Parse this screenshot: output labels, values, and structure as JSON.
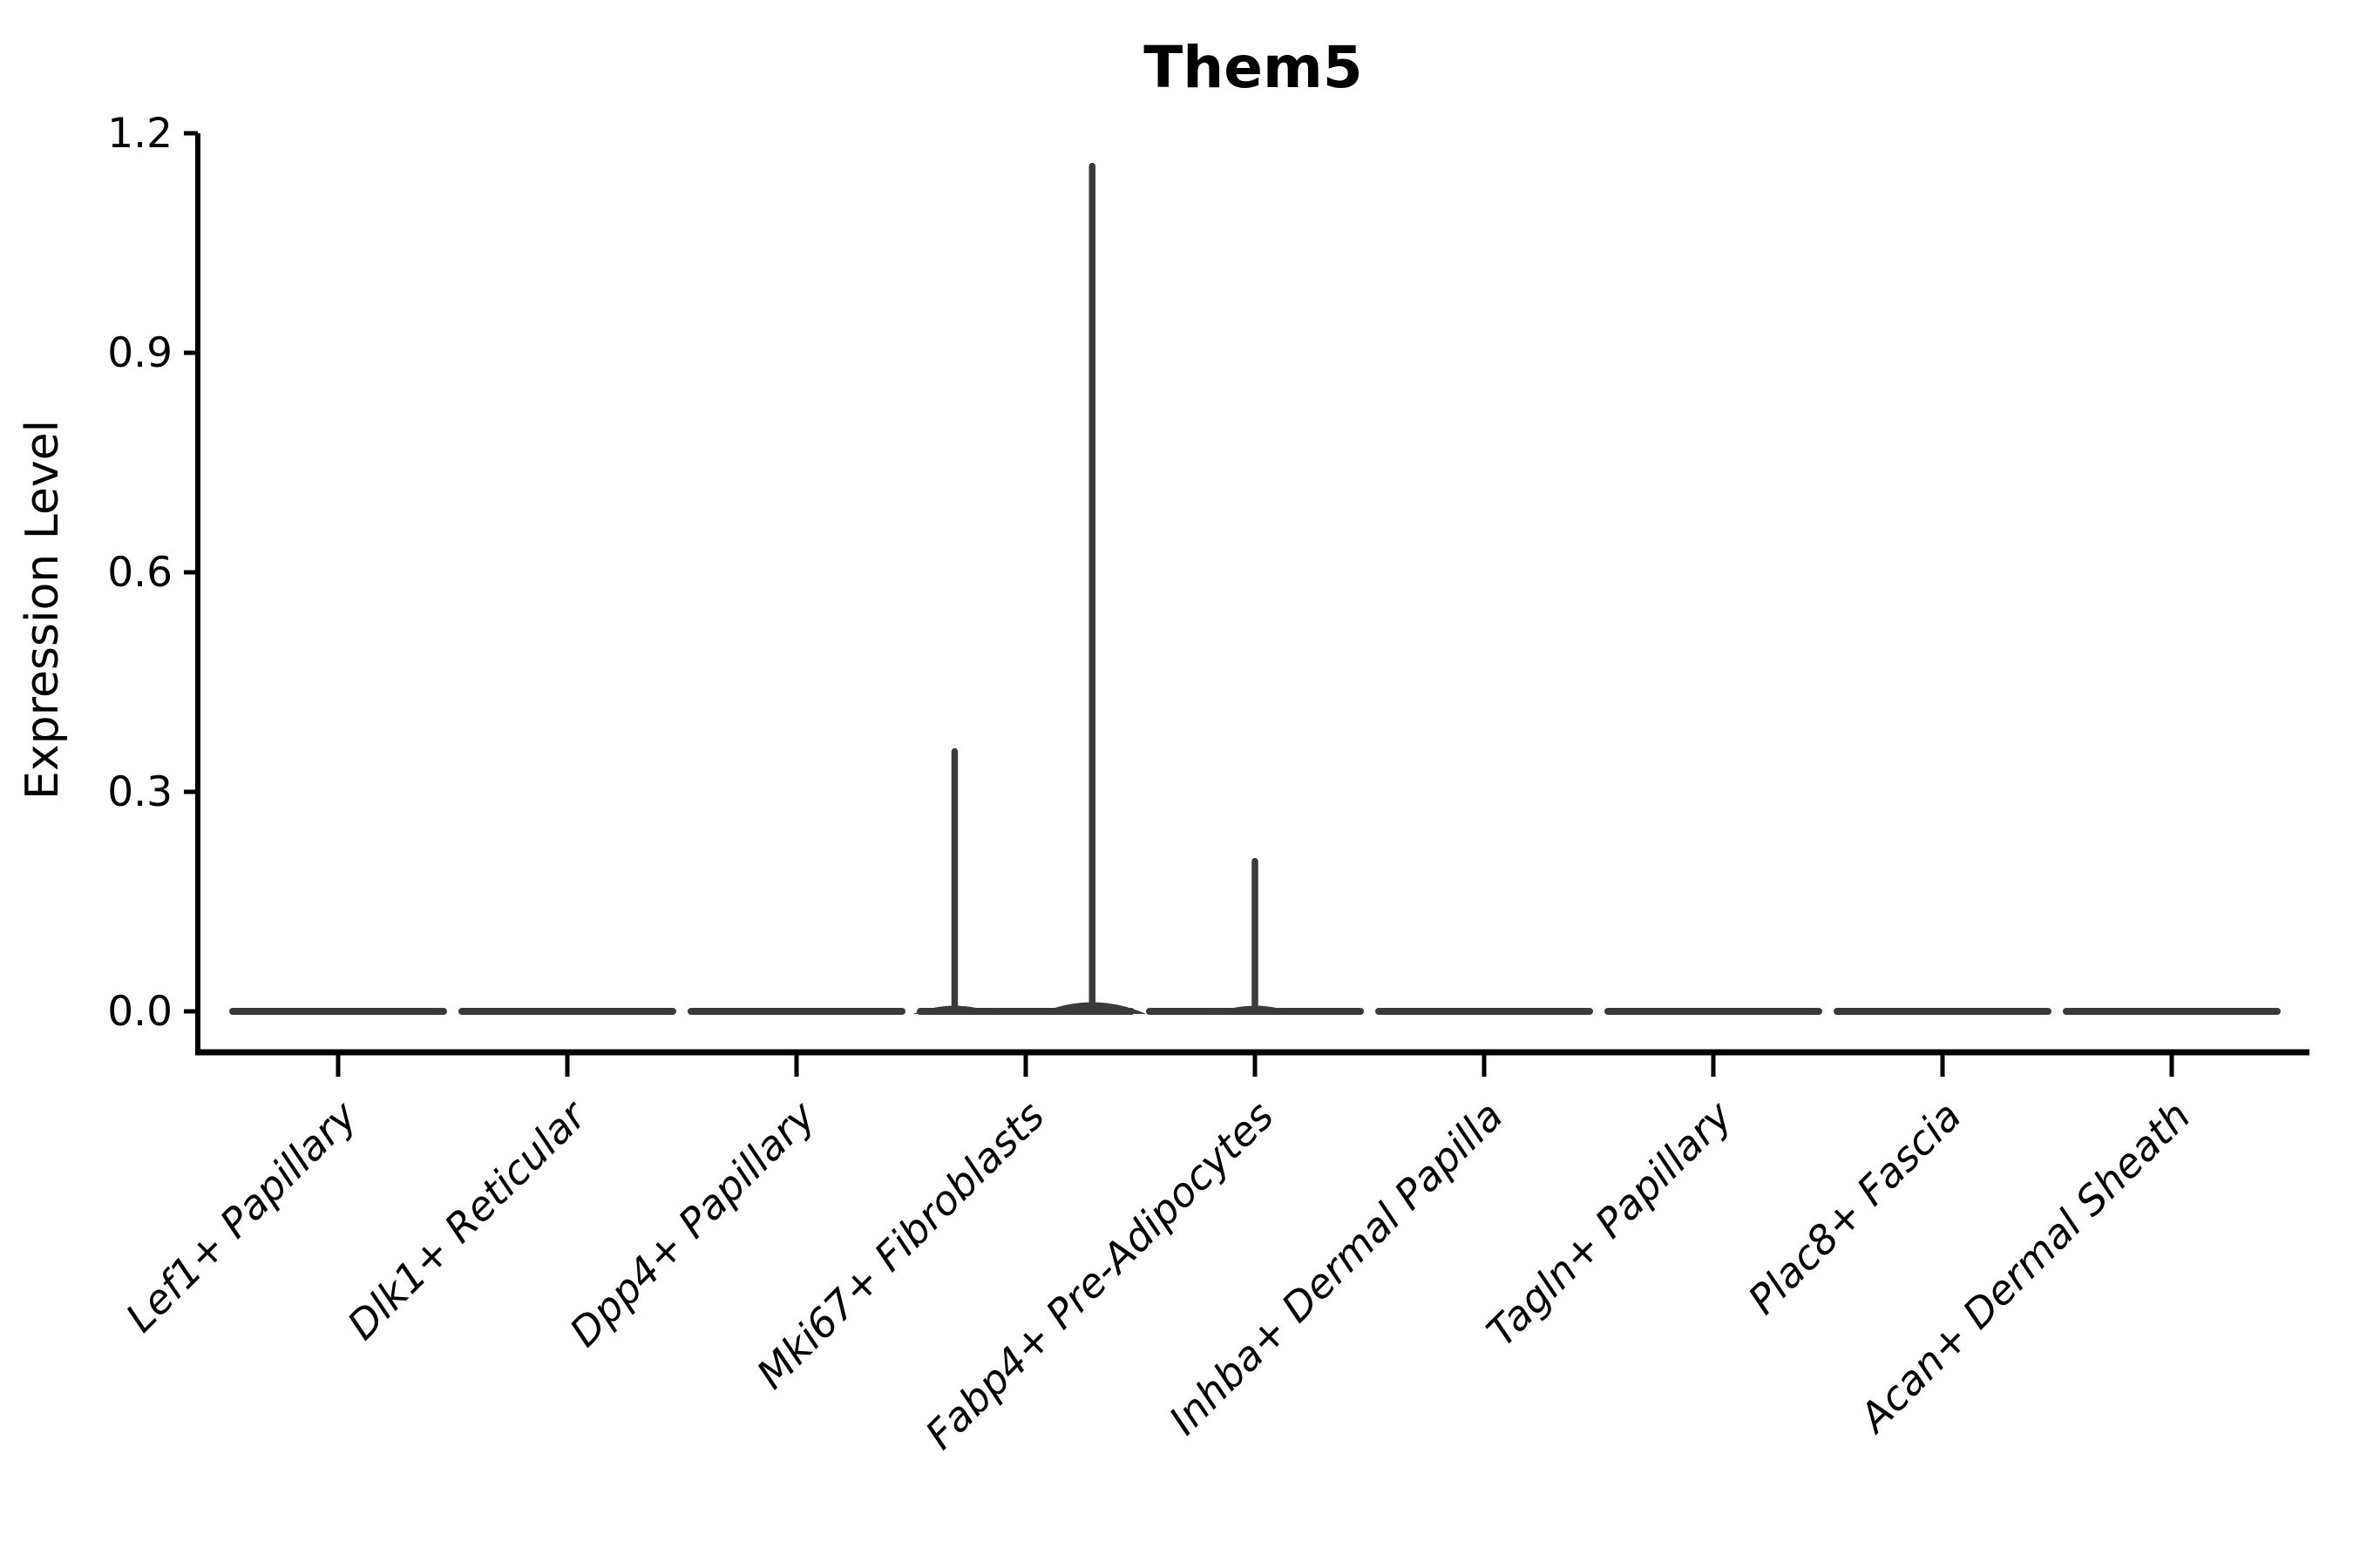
{
  "figure": {
    "title": "Them5",
    "background": "#ffffff"
  },
  "chart_data": {
    "type": "violin",
    "title": "Them5",
    "xlabel": "",
    "ylabel": "Expression Level",
    "yticks": [
      0.0,
      0.3,
      0.6,
      0.9,
      1.2
    ],
    "ylim": [
      -0.07,
      1.25
    ],
    "grid": false,
    "legend": "none",
    "categories": [
      "Lef1+ Papillary",
      "Dlk1+ Reticular",
      "Dpp4+ Papillary",
      "Mki67+ Fibroblasts",
      "Fabp4+ Pre-Adipocytes",
      "Inhba+ Dermal Papilla",
      "Tagln+ Papillary",
      "Plac8+ Fascia",
      "Acan+ Dermal Sheath"
    ],
    "series": [
      {
        "name": "Lef1+ Papillary",
        "baseline_value": 0.0,
        "max_value": 0.0,
        "spikes": []
      },
      {
        "name": "Dlk1+ Reticular",
        "baseline_value": 0.0,
        "max_value": 0.0,
        "spikes": []
      },
      {
        "name": "Dpp4+ Papillary",
        "baseline_value": 0.0,
        "max_value": 0.0,
        "spikes": []
      },
      {
        "name": "Mki67+ Fibroblasts",
        "baseline_value": 0.0,
        "max_value": 1.16,
        "spikes": [
          {
            "offset_frac": -0.31,
            "value": 0.36
          },
          {
            "offset_frac": 0.29,
            "value": 1.16
          }
        ]
      },
      {
        "name": "Fabp4+ Pre-Adipocytes",
        "baseline_value": 0.0,
        "max_value": 0.21,
        "spikes": [
          {
            "offset_frac": 0.0,
            "value": 0.21
          }
        ]
      },
      {
        "name": "Inhba+ Dermal Papilla",
        "baseline_value": 0.0,
        "max_value": 0.0,
        "spikes": []
      },
      {
        "name": "Tagln+ Papillary",
        "baseline_value": 0.0,
        "max_value": 0.0,
        "spikes": []
      },
      {
        "name": "Plac8+ Fascia",
        "baseline_value": 0.0,
        "max_value": 0.0,
        "spikes": []
      },
      {
        "name": "Acan+ Dermal Sheath",
        "baseline_value": 0.0,
        "max_value": 0.0,
        "spikes": []
      }
    ],
    "colors": {
      "violin": "#3a3a3a",
      "axis": "#000000",
      "text": "#000000",
      "background": "#ffffff"
    }
  }
}
